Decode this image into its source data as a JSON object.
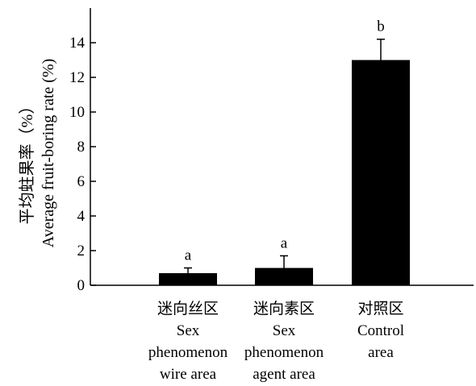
{
  "chart_data": {
    "type": "bar",
    "categories": [
      [
        "迷向丝区",
        "Sex",
        "phenomenon",
        "wire area"
      ],
      [
        "迷向素区",
        "Sex",
        "phenomenon",
        "agent area"
      ],
      [
        "对照区",
        "Control",
        "area"
      ]
    ],
    "values": [
      0.7,
      1.0,
      13.0
    ],
    "error": [
      0.3,
      0.7,
      1.2
    ],
    "significance": [
      "a",
      "a",
      "b"
    ],
    "ylabel_lines": [
      "平均蛀果率（%）",
      "Average fruit-boring rate (%)"
    ],
    "xlabel": "",
    "ylim": [
      0,
      16
    ],
    "yticks": [
      0,
      2,
      4,
      6,
      8,
      10,
      12,
      14
    ],
    "bar_color": "#000000",
    "grid": false,
    "legend": "none"
  }
}
